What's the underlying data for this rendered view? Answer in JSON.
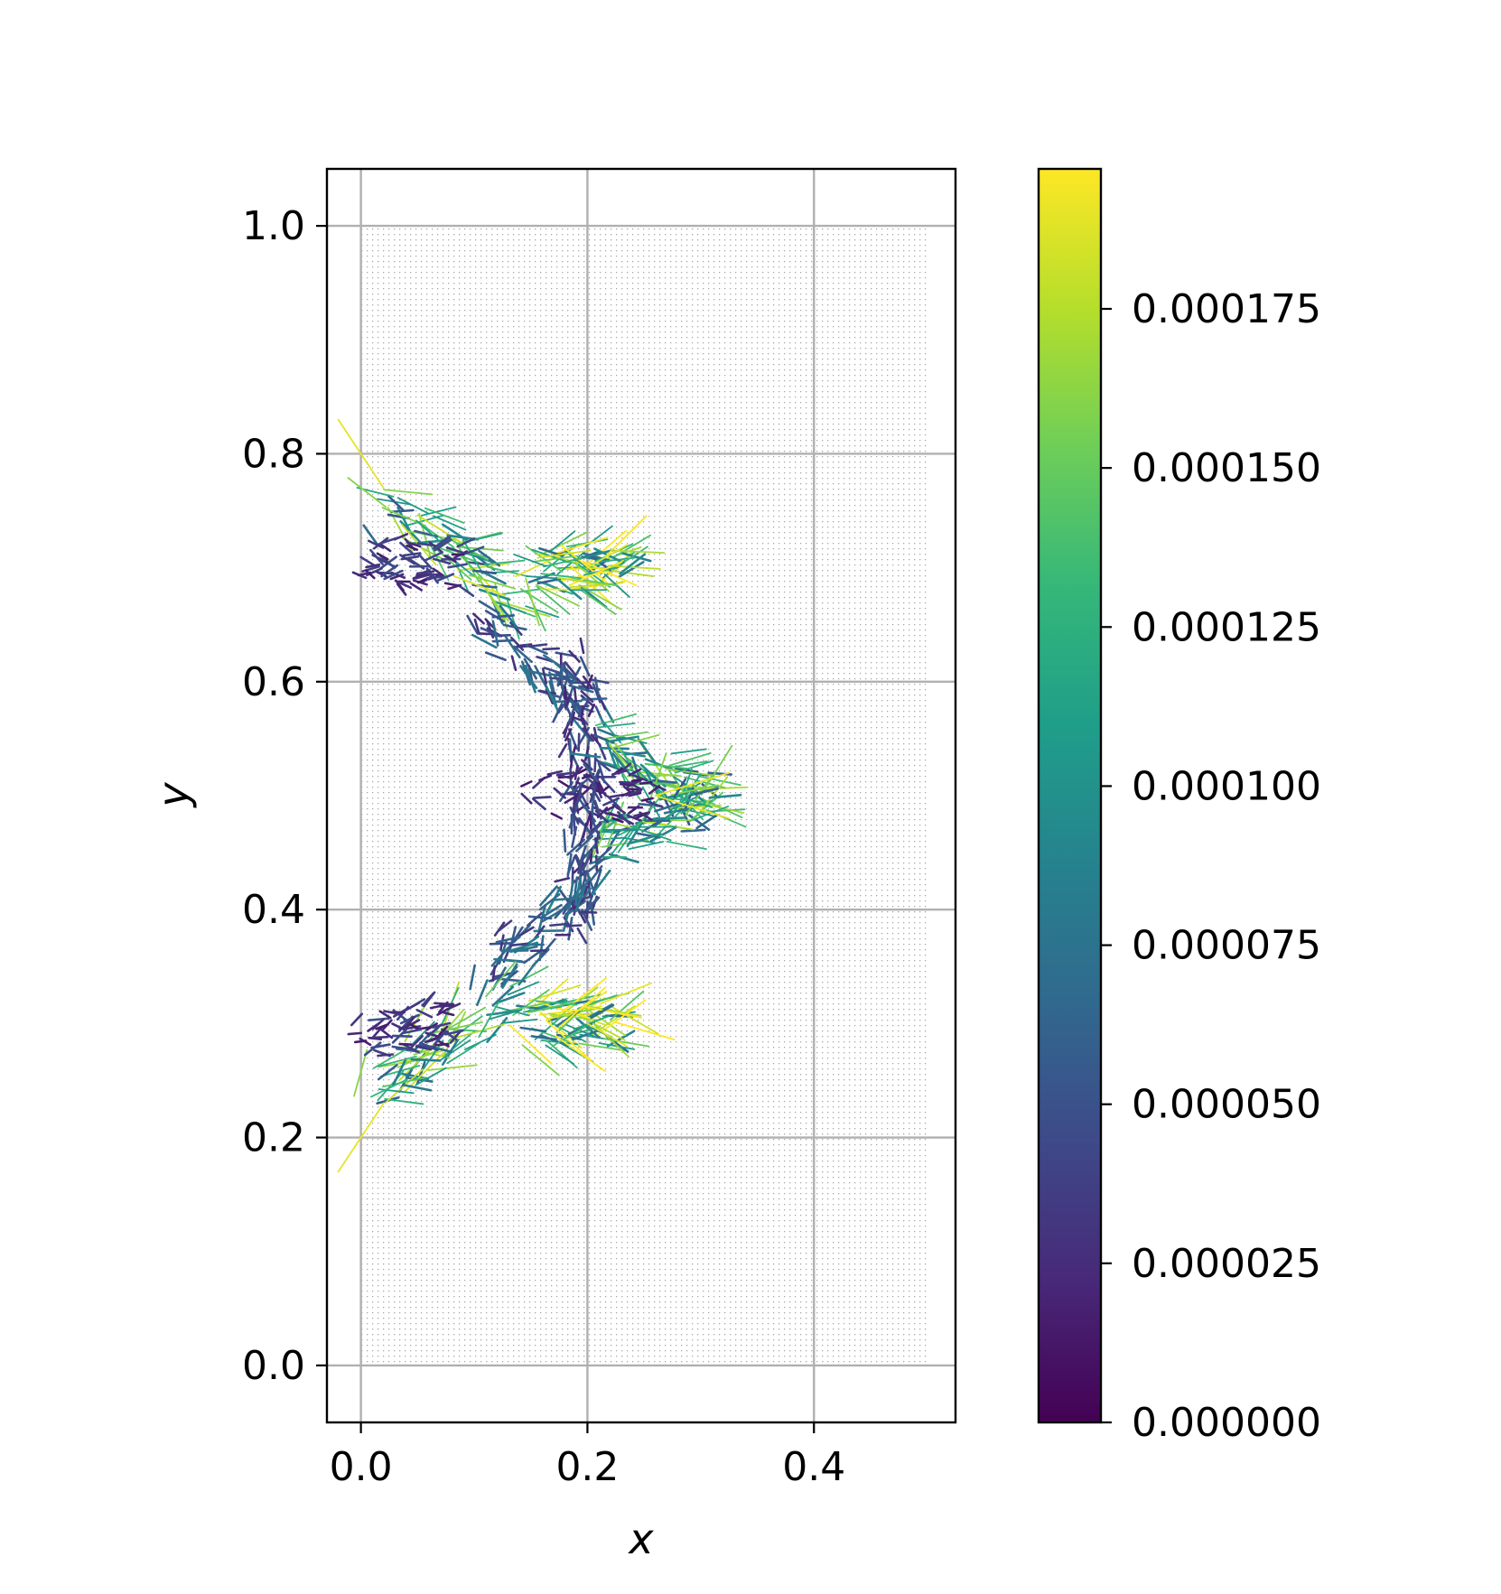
{
  "chart_data": [
    {
      "type": "quiver",
      "xlabel": "x",
      "ylabel": "y",
      "xlim": [
        -0.03,
        0.525
      ],
      "ylim": [
        -0.05,
        1.05
      ],
      "xticks": [
        {
          "value": 0.0,
          "label": "0.0"
        },
        {
          "value": 0.2,
          "label": "0.2"
        },
        {
          "value": 0.4,
          "label": "0.4"
        }
      ],
      "yticks": [
        {
          "value": 0.0,
          "label": "0.0"
        },
        {
          "value": 0.2,
          "label": "0.2"
        },
        {
          "value": 0.4,
          "label": "0.4"
        },
        {
          "value": 0.6,
          "label": "0.6"
        },
        {
          "value": 0.8,
          "label": "0.8"
        },
        {
          "value": 1.0,
          "label": "1.0"
        }
      ],
      "grid": true,
      "point_grid": {
        "x_range": [
          0.0,
          0.5
        ],
        "y_range": [
          0.0,
          1.0
        ],
        "color": "#6b5a6e"
      },
      "arrow_bands": [
        {
          "x0": 0.0,
          "y0": 0.76,
          "x1": 0.14,
          "y1": 0.68,
          "magnitude": 0.00015
        },
        {
          "x0": 0.14,
          "y0": 0.7,
          "x1": 0.22,
          "y1": 0.7,
          "magnitude": 0.00017
        },
        {
          "x0": 0.1,
          "y0": 0.66,
          "x1": 0.2,
          "y1": 0.58,
          "magnitude": 7e-05
        },
        {
          "x0": 0.19,
          "y0": 0.62,
          "x1": 0.2,
          "y1": 0.5,
          "magnitude": 5e-05
        },
        {
          "x0": 0.2,
          "y0": 0.55,
          "x1": 0.3,
          "y1": 0.5,
          "magnitude": 0.00014
        },
        {
          "x0": 0.2,
          "y0": 0.45,
          "x1": 0.3,
          "y1": 0.5,
          "magnitude": 0.00014
        },
        {
          "x0": 0.15,
          "y0": 0.5,
          "x1": 0.25,
          "y1": 0.5,
          "magnitude": 3e-05
        },
        {
          "x0": 0.19,
          "y0": 0.38,
          "x1": 0.2,
          "y1": 0.5,
          "magnitude": 5e-05
        },
        {
          "x0": 0.1,
          "y0": 0.34,
          "x1": 0.2,
          "y1": 0.42,
          "magnitude": 7e-05
        },
        {
          "x0": 0.14,
          "y0": 0.3,
          "x1": 0.22,
          "y1": 0.3,
          "magnitude": 0.00017
        },
        {
          "x0": 0.0,
          "y0": 0.24,
          "x1": 0.14,
          "y1": 0.32,
          "magnitude": 0.00015
        },
        {
          "x0": 0.0,
          "y0": 0.71,
          "x1": 0.08,
          "y1": 0.7,
          "magnitude": 4e-05
        },
        {
          "x0": 0.0,
          "y0": 0.29,
          "x1": 0.08,
          "y1": 0.3,
          "magnitude": 4e-05
        }
      ],
      "long_arrows": [
        {
          "x0": -0.02,
          "y0": 0.83,
          "x1": 0.02,
          "y1": 0.77,
          "magnitude": 0.00019
        },
        {
          "x0": -0.02,
          "y0": 0.17,
          "x1": 0.02,
          "y1": 0.23,
          "magnitude": 0.00019
        },
        {
          "x0": 0.26,
          "y0": 0.5,
          "x1": 0.325,
          "y1": 0.52,
          "magnitude": 0.00019
        },
        {
          "x0": 0.26,
          "y0": 0.5,
          "x1": 0.325,
          "y1": 0.48,
          "magnitude": 0.00019
        },
        {
          "x0": 0.2,
          "y0": 0.7,
          "x1": 0.235,
          "y1": 0.72,
          "magnitude": 0.00019
        },
        {
          "x0": 0.2,
          "y0": 0.3,
          "x1": 0.235,
          "y1": 0.28,
          "magnitude": 0.00019
        }
      ]
    },
    {
      "type": "colorbar",
      "colormap": "viridis",
      "range": [
        0.0,
        0.000197
      ],
      "ticks": [
        {
          "value": 0.0,
          "label": "0.000000"
        },
        {
          "value": 2.5e-05,
          "label": "0.000025"
        },
        {
          "value": 5e-05,
          "label": "0.000050"
        },
        {
          "value": 7.5e-05,
          "label": "0.000075"
        },
        {
          "value": 0.0001,
          "label": "0.000100"
        },
        {
          "value": 0.000125,
          "label": "0.000125"
        },
        {
          "value": 0.00015,
          "label": "0.000150"
        },
        {
          "value": 0.000175,
          "label": "0.000175"
        }
      ],
      "stops": [
        "#440154",
        "#482878",
        "#3e4989",
        "#31688e",
        "#26828e",
        "#1f9e89",
        "#35b779",
        "#6ece58",
        "#b5de2b",
        "#fde725"
      ]
    }
  ]
}
